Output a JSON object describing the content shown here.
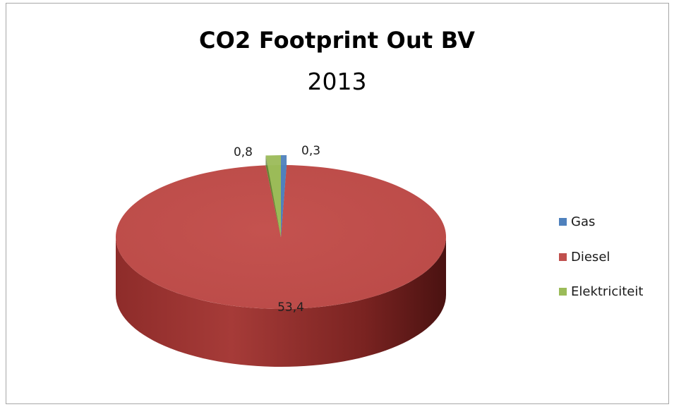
{
  "chart_data": {
    "type": "pie",
    "title": "CO2 Footprint Out BV",
    "subtitle": "2013",
    "three_d": true,
    "legend_position": "right",
    "series": [
      {
        "values": [
          0.3,
          53.4,
          0.8
        ],
        "labels": [
          "0,3",
          "53,4",
          "0,8"
        ]
      }
    ],
    "categories": [
      "Gas",
      "Diesel",
      "Elektriciteit"
    ],
    "colors": [
      "#4f81bd",
      "#c0504d",
      "#9bbb59"
    ]
  }
}
